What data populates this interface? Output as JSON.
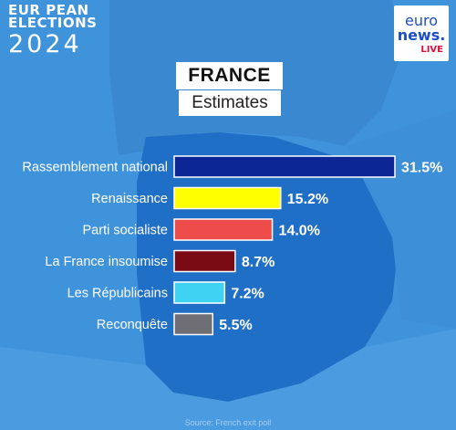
{
  "header": {
    "branding_line1": "EUR PEAN",
    "branding_line2": "ELECTIONS",
    "branding_year": "2024",
    "logo_line1": "euro",
    "logo_line2": "news.",
    "logo_badge": "LIVE"
  },
  "chart_data": {
    "type": "bar",
    "orientation": "horizontal",
    "title": "FRANCE",
    "subtitle": "Estimates",
    "categories": [
      "Rassemblement national",
      "Renaissance",
      "Parti socialiste",
      "La France insoumise",
      "Les Républicains",
      "Reconquête"
    ],
    "values": [
      31.5,
      15.2,
      14.0,
      8.7,
      7.2,
      5.5
    ],
    "value_labels": [
      "31.5%",
      "15.2%",
      "14.0%",
      "8.7%",
      "7.2%",
      "5.5%"
    ],
    "colors": [
      "#0d2696",
      "#ffff00",
      "#ee4b4b",
      "#7a0a14",
      "#3fd2f2",
      "#6e6e74"
    ],
    "xlim": [
      0,
      31.5
    ],
    "grid": false,
    "legend": "none"
  },
  "footer": {
    "source": "Source: French exit poll"
  }
}
